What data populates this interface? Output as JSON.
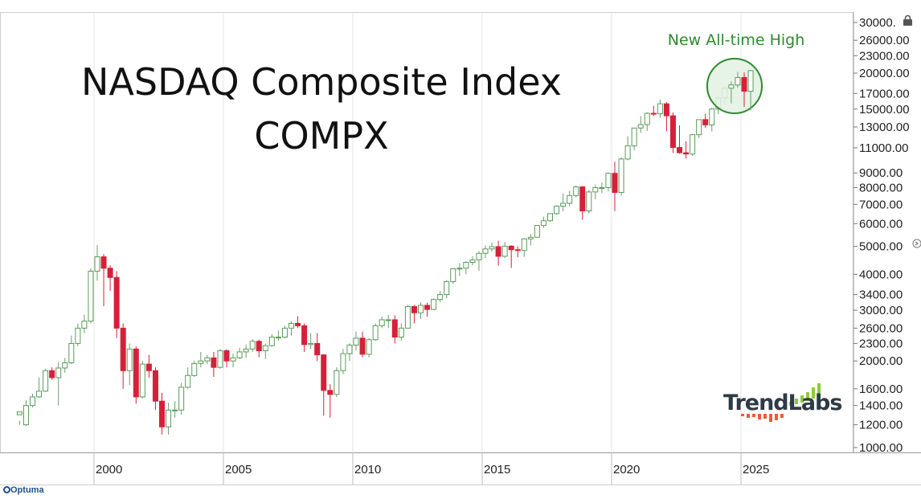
{
  "chart_data": {
    "type": "candlestick",
    "title_line1": "NASDAQ Composite Index",
    "title_line2": "COMPX",
    "annotation": "New All-time High",
    "brand": "TrendLabs",
    "footer": "Optuma",
    "y_scale": "log",
    "ylim": [
      950,
      31000
    ],
    "xlim": [
      1997.0,
      2030.0
    ],
    "x_ticks": [
      2000,
      2005,
      2010,
      2015,
      2020,
      2025
    ],
    "y_ticks": [
      "30000.",
      "26000.00",
      "23000.00",
      "20000.00",
      "17000.00",
      "15000.00",
      "13000.00",
      "11000.00",
      "9000.00",
      "8000.00",
      "7000.00",
      "6000.00",
      "5000.00",
      "4000.00",
      "3400.00",
      "3000.00",
      "2600.00",
      "2300.00",
      "2000.00",
      "1600.00",
      "1400.00",
      "1200.00",
      "1000.00"
    ],
    "colors": {
      "up": "#5a9a5a",
      "down": "#d6203a",
      "highlight": "#2e8b2e",
      "highlight_fill": "#e3f1e3"
    },
    "candles_quarterly": [
      [
        1997.0,
        1300,
        1330,
        1240,
        1200
      ],
      [
        1997.25,
        1200,
        1400,
        1460,
        1190
      ],
      [
        1997.5,
        1400,
        1500,
        1540,
        1380
      ],
      [
        1997.75,
        1500,
        1570,
        1750,
        1490
      ],
      [
        1998.0,
        1570,
        1850,
        1880,
        1560
      ],
      [
        1998.25,
        1850,
        1750,
        1900,
        1720
      ],
      [
        1998.5,
        1750,
        1890,
        1980,
        1400
      ],
      [
        1998.75,
        1890,
        1970,
        2050,
        1820
      ],
      [
        1999.0,
        1970,
        2300,
        2450,
        1950
      ],
      [
        1999.25,
        2300,
        2600,
        2700,
        2250
      ],
      [
        1999.5,
        2600,
        2750,
        2900,
        2500
      ],
      [
        1999.75,
        2750,
        4100,
        4200,
        2700
      ],
      [
        2000.0,
        4100,
        4600,
        5050,
        3800
      ],
      [
        2000.25,
        4600,
        4200,
        4700,
        3100
      ],
      [
        2000.5,
        4200,
        3900,
        4300,
        3500
      ],
      [
        2000.75,
        3900,
        2600,
        4100,
        2400
      ],
      [
        2001.0,
        2600,
        1850,
        2700,
        1600
      ],
      [
        2001.25,
        1850,
        2200,
        2300,
        1650
      ],
      [
        2001.5,
        2200,
        1500,
        2250,
        1420
      ],
      [
        2001.75,
        1500,
        1950,
        2000,
        1480
      ],
      [
        2002.0,
        1950,
        1850,
        2100,
        1750
      ],
      [
        2002.25,
        1850,
        1450,
        1900,
        1350
      ],
      [
        2002.5,
        1450,
        1180,
        1550,
        1110
      ],
      [
        2002.75,
        1180,
        1350,
        1430,
        1110
      ],
      [
        2003.0,
        1350,
        1350,
        1450,
        1270
      ],
      [
        2003.25,
        1350,
        1620,
        1680,
        1300
      ],
      [
        2003.5,
        1620,
        1780,
        1900,
        1600
      ],
      [
        2003.75,
        1780,
        1960,
        2000,
        1760
      ],
      [
        2004.0,
        1960,
        2000,
        2150,
        1900
      ],
      [
        2004.25,
        2000,
        2050,
        2100,
        1950
      ],
      [
        2004.5,
        2050,
        1900,
        2150,
        1760
      ],
      [
        2004.75,
        1900,
        2170,
        2200,
        1880
      ],
      [
        2005.0,
        2170,
        2000,
        2200,
        1900
      ],
      [
        2005.25,
        2000,
        2050,
        2120,
        1900
      ],
      [
        2005.5,
        2050,
        2150,
        2220,
        2030
      ],
      [
        2005.75,
        2150,
        2200,
        2280,
        2050
      ],
      [
        2006.0,
        2200,
        2340,
        2380,
        2150
      ],
      [
        2006.25,
        2340,
        2170,
        2370,
        2060
      ],
      [
        2006.5,
        2170,
        2260,
        2300,
        2030
      ],
      [
        2006.75,
        2260,
        2420,
        2480,
        2240
      ],
      [
        2007.0,
        2420,
        2420,
        2550,
        2350
      ],
      [
        2007.25,
        2420,
        2600,
        2650,
        2400
      ],
      [
        2007.5,
        2600,
        2700,
        2750,
        2450
      ],
      [
        2007.75,
        2700,
        2650,
        2860,
        2600
      ],
      [
        2008.0,
        2650,
        2280,
        2700,
        2150
      ],
      [
        2008.25,
        2280,
        2300,
        2500,
        2200
      ],
      [
        2008.5,
        2300,
        2100,
        2500,
        2000
      ],
      [
        2008.75,
        2100,
        1580,
        2100,
        1290
      ],
      [
        2009.0,
        1580,
        1530,
        1660,
        1270
      ],
      [
        2009.25,
        1530,
        1850,
        1900,
        1500
      ],
      [
        2009.5,
        1850,
        2120,
        2200,
        1800
      ],
      [
        2009.75,
        2120,
        2270,
        2300,
        2000
      ],
      [
        2010.0,
        2270,
        2400,
        2530,
        2170
      ],
      [
        2010.25,
        2400,
        2110,
        2530,
        2060
      ],
      [
        2010.5,
        2110,
        2370,
        2400,
        2060
      ],
      [
        2010.75,
        2370,
        2650,
        2700,
        2350
      ],
      [
        2011.0,
        2650,
        2780,
        2850,
        2600
      ],
      [
        2011.25,
        2780,
        2780,
        2890,
        2600
      ],
      [
        2011.5,
        2780,
        2420,
        2880,
        2300
      ],
      [
        2011.75,
        2420,
        2600,
        2700,
        2350
      ],
      [
        2012.0,
        2600,
        3090,
        3130,
        2600
      ],
      [
        2012.25,
        3090,
        2940,
        3130,
        2700
      ],
      [
        2012.5,
        2940,
        3120,
        3200,
        2800
      ],
      [
        2012.75,
        3120,
        3020,
        3190,
        2850
      ],
      [
        2013.0,
        3020,
        3270,
        3300,
        3000
      ],
      [
        2013.25,
        3270,
        3400,
        3500,
        3200
      ],
      [
        2013.5,
        3400,
        3770,
        3820,
        3300
      ],
      [
        2013.75,
        3770,
        4180,
        4200,
        3700
      ],
      [
        2014.0,
        4180,
        4200,
        4370,
        3950
      ],
      [
        2014.25,
        4200,
        4400,
        4450,
        4000
      ],
      [
        2014.5,
        4400,
        4490,
        4620,
        4300
      ],
      [
        2014.75,
        4490,
        4730,
        4810,
        4110
      ],
      [
        2015.0,
        4730,
        4900,
        5040,
        4560
      ],
      [
        2015.25,
        4900,
        4990,
        5160,
        4800
      ],
      [
        2015.5,
        4990,
        4620,
        5230,
        4290
      ],
      [
        2015.75,
        4620,
        5010,
        5180,
        4560
      ],
      [
        2016.0,
        5010,
        4870,
        5050,
        4210
      ],
      [
        2016.25,
        4870,
        4840,
        5000,
        4580
      ],
      [
        2016.5,
        4840,
        5310,
        5340,
        4600
      ],
      [
        2016.75,
        5310,
        5380,
        5520,
        5040
      ],
      [
        2017.0,
        5380,
        5910,
        5930,
        5350
      ],
      [
        2017.25,
        5910,
        6140,
        6340,
        5800
      ],
      [
        2017.5,
        6140,
        6500,
        6500,
        6080
      ],
      [
        2017.75,
        6500,
        6900,
        6950,
        6440
      ],
      [
        2018.0,
        6900,
        7060,
        7640,
        6630
      ],
      [
        2018.25,
        7060,
        7510,
        7800,
        6900
      ],
      [
        2018.5,
        7510,
        8050,
        8130,
        7400
      ],
      [
        2018.75,
        8050,
        6640,
        8110,
        6190
      ],
      [
        2019.0,
        6640,
        7730,
        7850,
        6500
      ],
      [
        2019.25,
        7730,
        8000,
        8200,
        7290
      ],
      [
        2019.5,
        8000,
        8000,
        8340,
        7660
      ],
      [
        2019.75,
        8000,
        8970,
        9050,
        7760
      ],
      [
        2020.0,
        8970,
        7700,
        9840,
        6630
      ],
      [
        2020.25,
        7700,
        10060,
        10200,
        7500
      ],
      [
        2020.5,
        10060,
        11170,
        12070,
        9960
      ],
      [
        2020.75,
        11170,
        12890,
        12900,
        10800
      ],
      [
        2021.0,
        12890,
        13250,
        14180,
        12400
      ],
      [
        2021.25,
        13250,
        14500,
        14600,
        12600
      ],
      [
        2021.5,
        14500,
        14450,
        15400,
        14200
      ],
      [
        2021.75,
        14450,
        15650,
        16210,
        14000
      ],
      [
        2022.0,
        15650,
        14220,
        15850,
        12550
      ],
      [
        2022.25,
        14220,
        11030,
        14600,
        10560
      ],
      [
        2022.5,
        11030,
        10580,
        13180,
        10500
      ],
      [
        2022.75,
        10580,
        10470,
        11600,
        10100
      ],
      [
        2023.0,
        10470,
        12220,
        12300,
        10300
      ],
      [
        2023.25,
        12220,
        13790,
        13800,
        11900
      ],
      [
        2023.5,
        13790,
        13220,
        14450,
        12900
      ],
      [
        2023.75,
        13220,
        15010,
        15150,
        12540
      ],
      [
        2024.0,
        15010,
        16380,
        16540,
        14400
      ],
      [
        2024.25,
        16380,
        17730,
        17950,
        15500
      ],
      [
        2024.5,
        17730,
        18190,
        18670,
        15700
      ],
      [
        2024.75,
        18190,
        19310,
        20200,
        17780
      ],
      [
        2025.0,
        19310,
        17300,
        20120,
        15270
      ],
      [
        2025.25,
        17300,
        20400,
        20500,
        14800
      ]
    ]
  }
}
